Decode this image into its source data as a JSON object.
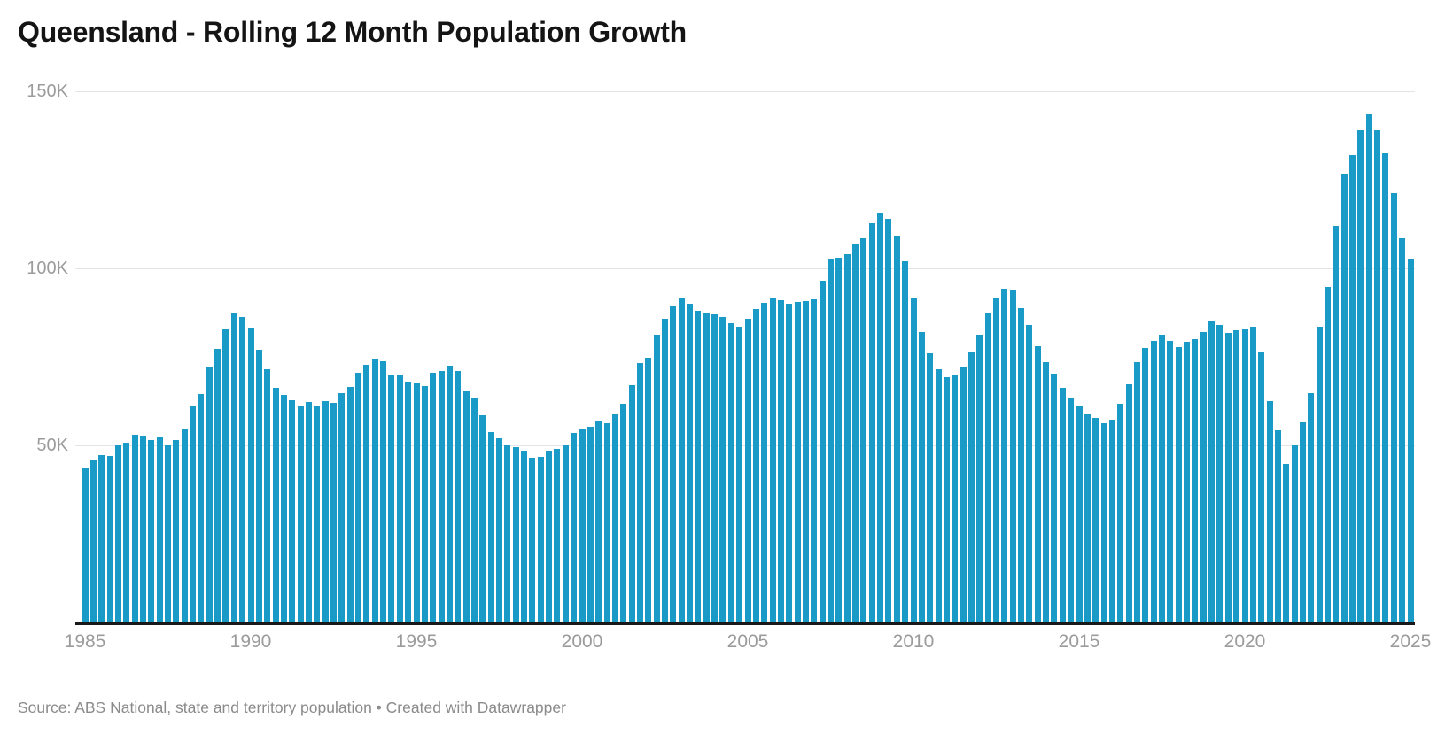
{
  "header": {
    "title": "Queensland - Rolling 12 Month Population Growth"
  },
  "footer": {
    "text": "Source: ABS National, state and territory population • Created with Datawrapper"
  },
  "colors": {
    "bar": "#1a9ac6",
    "gridline": "#e4e4e4",
    "axis_baseline": "#19191c",
    "tick_label": "#9b9b9b",
    "title_text": "#141414",
    "source_text": "#8b8b8b",
    "background": "#ffffff"
  },
  "chart_data": {
    "type": "bar",
    "title": "Queensland - Rolling 12 Month Population Growth",
    "xlabel": "",
    "ylabel": "",
    "unit": "persons, thousands (K)",
    "frequency": "quarterly",
    "x_start": "1985-Q1",
    "x_end": "2025-Q1",
    "ylim": [
      0,
      157500
    ],
    "grid": "horizontal",
    "legend_position": "none",
    "bar_color": "#1a9ac6",
    "y_ticks": [
      {
        "label": "150K",
        "value": 150
      },
      {
        "label": "100K",
        "value": 100
      },
      {
        "label": "50K",
        "value": 50
      }
    ],
    "x_tick_labels": [
      "1985",
      "1990",
      "1995",
      "2000",
      "2005",
      "2010",
      "2015",
      "2020",
      "2025"
    ],
    "categories": [
      "1985Q1",
      "1985Q2",
      "1985Q3",
      "1985Q4",
      "1986Q1",
      "1986Q2",
      "1986Q3",
      "1986Q4",
      "1987Q1",
      "1987Q2",
      "1987Q3",
      "1987Q4",
      "1988Q1",
      "1988Q2",
      "1988Q3",
      "1988Q4",
      "1989Q1",
      "1989Q2",
      "1989Q3",
      "1989Q4",
      "1990Q1",
      "1990Q2",
      "1990Q3",
      "1990Q4",
      "1991Q1",
      "1991Q2",
      "1991Q3",
      "1991Q4",
      "1992Q1",
      "1992Q2",
      "1992Q3",
      "1992Q4",
      "1993Q1",
      "1993Q2",
      "1993Q3",
      "1993Q4",
      "1994Q1",
      "1994Q2",
      "1994Q3",
      "1994Q4",
      "1995Q1",
      "1995Q2",
      "1995Q3",
      "1995Q4",
      "1996Q1",
      "1996Q2",
      "1996Q3",
      "1996Q4",
      "1997Q1",
      "1997Q2",
      "1997Q3",
      "1997Q4",
      "1998Q1",
      "1998Q2",
      "1998Q3",
      "1998Q4",
      "1999Q1",
      "1999Q2",
      "1999Q3",
      "1999Q4",
      "2000Q1",
      "2000Q2",
      "2000Q3",
      "2000Q4",
      "2001Q1",
      "2001Q2",
      "2001Q3",
      "2001Q4",
      "2002Q1",
      "2002Q2",
      "2002Q3",
      "2002Q4",
      "2003Q1",
      "2003Q2",
      "2003Q3",
      "2003Q4",
      "2004Q1",
      "2004Q2",
      "2004Q3",
      "2004Q4",
      "2005Q1",
      "2005Q2",
      "2005Q3",
      "2005Q4",
      "2006Q1",
      "2006Q2",
      "2006Q3",
      "2006Q4",
      "2007Q1",
      "2007Q2",
      "2007Q3",
      "2007Q4",
      "2008Q1",
      "2008Q2",
      "2008Q3",
      "2008Q4",
      "2009Q1",
      "2009Q2",
      "2009Q3",
      "2009Q4",
      "2010Q1",
      "2010Q2",
      "2010Q3",
      "2010Q4",
      "2011Q1",
      "2011Q2",
      "2011Q3",
      "2011Q4",
      "2012Q1",
      "2012Q2",
      "2012Q3",
      "2012Q4",
      "2013Q1",
      "2013Q2",
      "2013Q3",
      "2013Q4",
      "2014Q1",
      "2014Q2",
      "2014Q3",
      "2014Q4",
      "2015Q1",
      "2015Q2",
      "2015Q3",
      "2015Q4",
      "2016Q1",
      "2016Q2",
      "2016Q3",
      "2016Q4",
      "2017Q1",
      "2017Q2",
      "2017Q3",
      "2017Q4",
      "2018Q1",
      "2018Q2",
      "2018Q3",
      "2018Q4",
      "2019Q1",
      "2019Q2",
      "2019Q3",
      "2019Q4",
      "2020Q1",
      "2020Q2",
      "2020Q3",
      "2020Q4",
      "2021Q1",
      "2021Q2",
      "2021Q3",
      "2021Q4",
      "2022Q1",
      "2022Q2",
      "2022Q3",
      "2022Q4",
      "2023Q1",
      "2023Q2",
      "2023Q3",
      "2023Q4",
      "2024Q1",
      "2024Q2",
      "2024Q3",
      "2024Q4",
      "2025Q1"
    ],
    "values": [
      43.5,
      45.8,
      47.3,
      47.1,
      49.9,
      50.7,
      53.1,
      52.8,
      51.5,
      52.2,
      49.9,
      51.4,
      54.4,
      61.2,
      64.5,
      72.0,
      77.2,
      82.7,
      87.6,
      86.2,
      82.9,
      77.0,
      71.4,
      66.2,
      64.3,
      62.8,
      61.3,
      62.3,
      61.2,
      62.6,
      62.0,
      64.8,
      66.6,
      70.6,
      72.8,
      74.6,
      73.8,
      69.8,
      70.1,
      68.0,
      67.4,
      66.8,
      70.6,
      70.9,
      72.4,
      71.1,
      65.3,
      63.3,
      58.4,
      53.8,
      52.0,
      49.9,
      49.5,
      48.5,
      46.6,
      46.8,
      48.4,
      49.0,
      50.0,
      53.4,
      54.8,
      55.3,
      56.8,
      56.2,
      58.9,
      61.7,
      67.1,
      73.2,
      74.8,
      81.2,
      85.8,
      89.3,
      91.8,
      89.9,
      88.0,
      87.4,
      87.1,
      86.3,
      84.5,
      83.6,
      85.8,
      88.4,
      90.3,
      91.5,
      91.0,
      90.0,
      90.5,
      90.8,
      91.3,
      96.5,
      102.7,
      102.9,
      104.0,
      106.8,
      108.6,
      112.8,
      115.4,
      114.0,
      109.2,
      101.9,
      91.7,
      82.0,
      76.0,
      71.5,
      69.3,
      69.8,
      72.0,
      76.3,
      81.3,
      87.3,
      91.6,
      94.3,
      93.8,
      88.7,
      83.9,
      78.1,
      73.5,
      70.2,
      66.3,
      63.4,
      61.3,
      58.8,
      57.7,
      56.3,
      57.2,
      61.8,
      67.3,
      73.4,
      77.6,
      79.5,
      81.3,
      79.5,
      77.7,
      79.3,
      80.1,
      82.0,
      85.2,
      83.9,
      81.8,
      82.6,
      82.8,
      83.6,
      76.6,
      62.4,
      54.3,
      44.8,
      49.9,
      56.6,
      64.8,
      83.5,
      94.7,
      112.1,
      126.6,
      131.9,
      139.0,
      143.4,
      139.0,
      132.4,
      121.2,
      108.4,
      102.6
    ]
  }
}
